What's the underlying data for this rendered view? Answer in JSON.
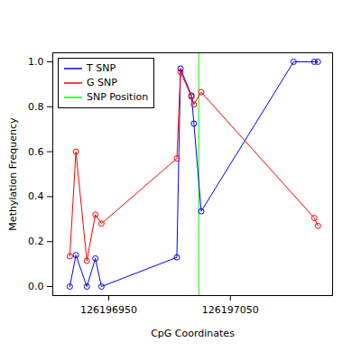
{
  "chart_data": {
    "type": "line",
    "x_label": "CpG Coordinates",
    "y_label": "Methylation Frequency",
    "xlim": [
      126196904,
      126197134
    ],
    "ylim": [
      -0.04,
      1.04
    ],
    "xticks": [
      126196950,
      126197050
    ],
    "yticks": [
      {
        "value": 0,
        "label": "0.0"
      },
      {
        "value": 0.2,
        "label": "0.2"
      },
      {
        "value": 0.4,
        "label": "0.4"
      },
      {
        "value": 0.6,
        "label": "0.6"
      },
      {
        "value": 0.8,
        "label": "0.8"
      },
      {
        "value": 1,
        "label": "1.0"
      }
    ],
    "marker": "circle",
    "legend": "top-left",
    "series": [
      {
        "name": "T SNP",
        "color": "#0000ff",
        "x": [
          126196918,
          126196923,
          126196932,
          126196939,
          126196944,
          126197006,
          126197009,
          126197018,
          126197020,
          126197026,
          126197102,
          126197119,
          126197122
        ],
        "values": [
          0,
          0.14,
          0,
          0.125,
          0,
          0.13,
          0.97,
          0.85,
          0.725,
          0.335,
          1,
          1,
          1
        ]
      },
      {
        "name": "G SNP",
        "color": "#ff0000",
        "x": [
          126196918,
          126196923,
          126196932,
          126196939,
          126196944,
          126197006,
          126197009,
          126197018,
          126197020,
          126197026,
          126197119,
          126197122
        ],
        "values": [
          0.135,
          0.6,
          0.115,
          0.32,
          0.28,
          0.57,
          0.955,
          0.845,
          0.81,
          0.865,
          0.305,
          0.27
        ]
      }
    ],
    "snp_position": {
      "name": "SNP Position",
      "color": "#00ff00",
      "x": 126197024
    }
  }
}
